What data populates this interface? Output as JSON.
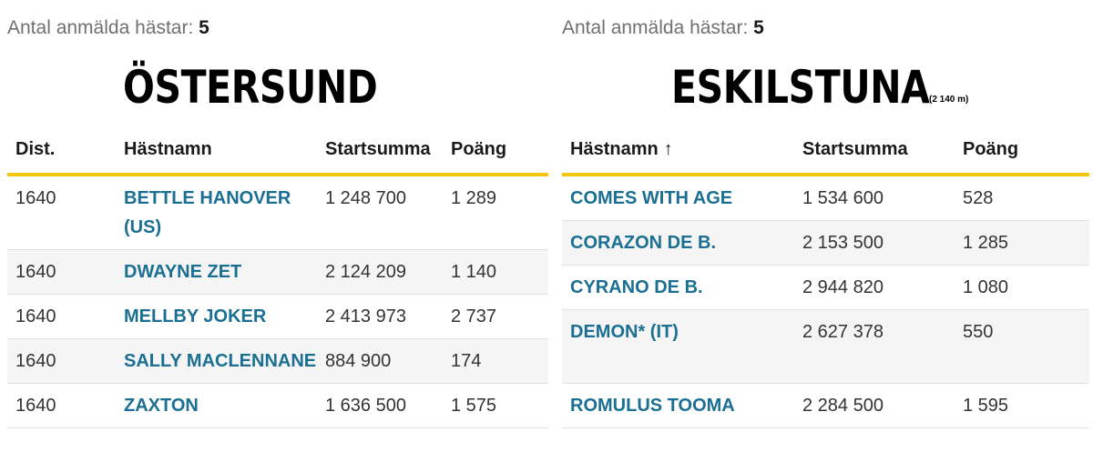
{
  "left": {
    "count_label": "Antal anmälda hästar:",
    "count_value": "5",
    "venue": "ÖSTERSUND",
    "headers": {
      "dist": "Dist.",
      "name": "Hästnamn",
      "sum": "Startsumma",
      "points": "Poäng"
    },
    "rows": [
      {
        "dist": "1640",
        "name": "BETTLE HANOVER (US)",
        "sum": "1 248 700",
        "points": "1 289"
      },
      {
        "dist": "1640",
        "name": "DWAYNE ZET",
        "sum": "2 124 209",
        "points": "1 140"
      },
      {
        "dist": "1640",
        "name": "MELLBY JOKER",
        "sum": "2 413 973",
        "points": "2 737"
      },
      {
        "dist": "1640",
        "name": "SALLY MACLENNANE",
        "sum": "884 900",
        "points": "174"
      },
      {
        "dist": "1640",
        "name": "ZAXTON",
        "sum": "1 636 500",
        "points": "1 575"
      }
    ]
  },
  "right": {
    "count_label": "Antal anmälda hästar:",
    "count_value": "5",
    "venue": "ESKILSTUNA",
    "distance": "(2 140 m)",
    "headers": {
      "name": "Hästnamn",
      "sort_arrow": "↑",
      "sum": "Startsumma",
      "points": "Poäng"
    },
    "rows": [
      {
        "name": "COMES WITH AGE",
        "sum": "1 534 600",
        "points": "528"
      },
      {
        "name": "CORAZON DE B.",
        "sum": "2 153 500",
        "points": "1 285"
      },
      {
        "name": "CYRANO DE B.",
        "sum": "2 944 820",
        "points": "1 080"
      },
      {
        "name": "DEMON* (IT)",
        "sum": "2 627 378",
        "points": "550"
      },
      {
        "name": "ROMULUS TOOMA",
        "sum": "2 284 500",
        "points": "1 595"
      }
    ]
  },
  "colors": {
    "accent": "#f4c60f",
    "link": "#1a6f92",
    "row_shade": "#f5f5f5"
  }
}
